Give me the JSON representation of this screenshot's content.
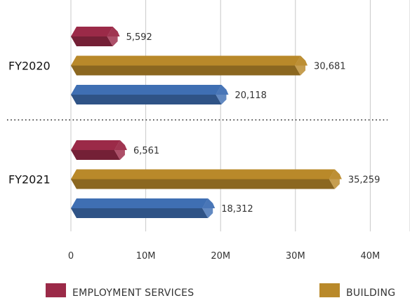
{
  "chart_data": {
    "type": "bar",
    "orientation": "horizontal",
    "categories": [
      "FY2020",
      "FY2021"
    ],
    "x_ticks": [
      "0",
      "10M",
      "20M",
      "30M",
      "40M"
    ],
    "xlim": [
      0,
      45000000
    ],
    "grid": true,
    "legend_position": "bottom",
    "series": [
      {
        "name": "EMPLOYMENT SERVICES",
        "color": "#9b2a48",
        "values": [
          5592000,
          6561000
        ],
        "labels": [
          "5,592",
          "6,561"
        ]
      },
      {
        "name": "BUILDING",
        "color": "#b9892a",
        "values": [
          30681000,
          35259000
        ],
        "labels": [
          "30,681",
          "35,259"
        ]
      },
      {
        "name": "",
        "color": "#3f6fb3",
        "values": [
          20118000,
          18312000
        ],
        "labels": [
          "20,118",
          "18,312"
        ]
      }
    ]
  }
}
